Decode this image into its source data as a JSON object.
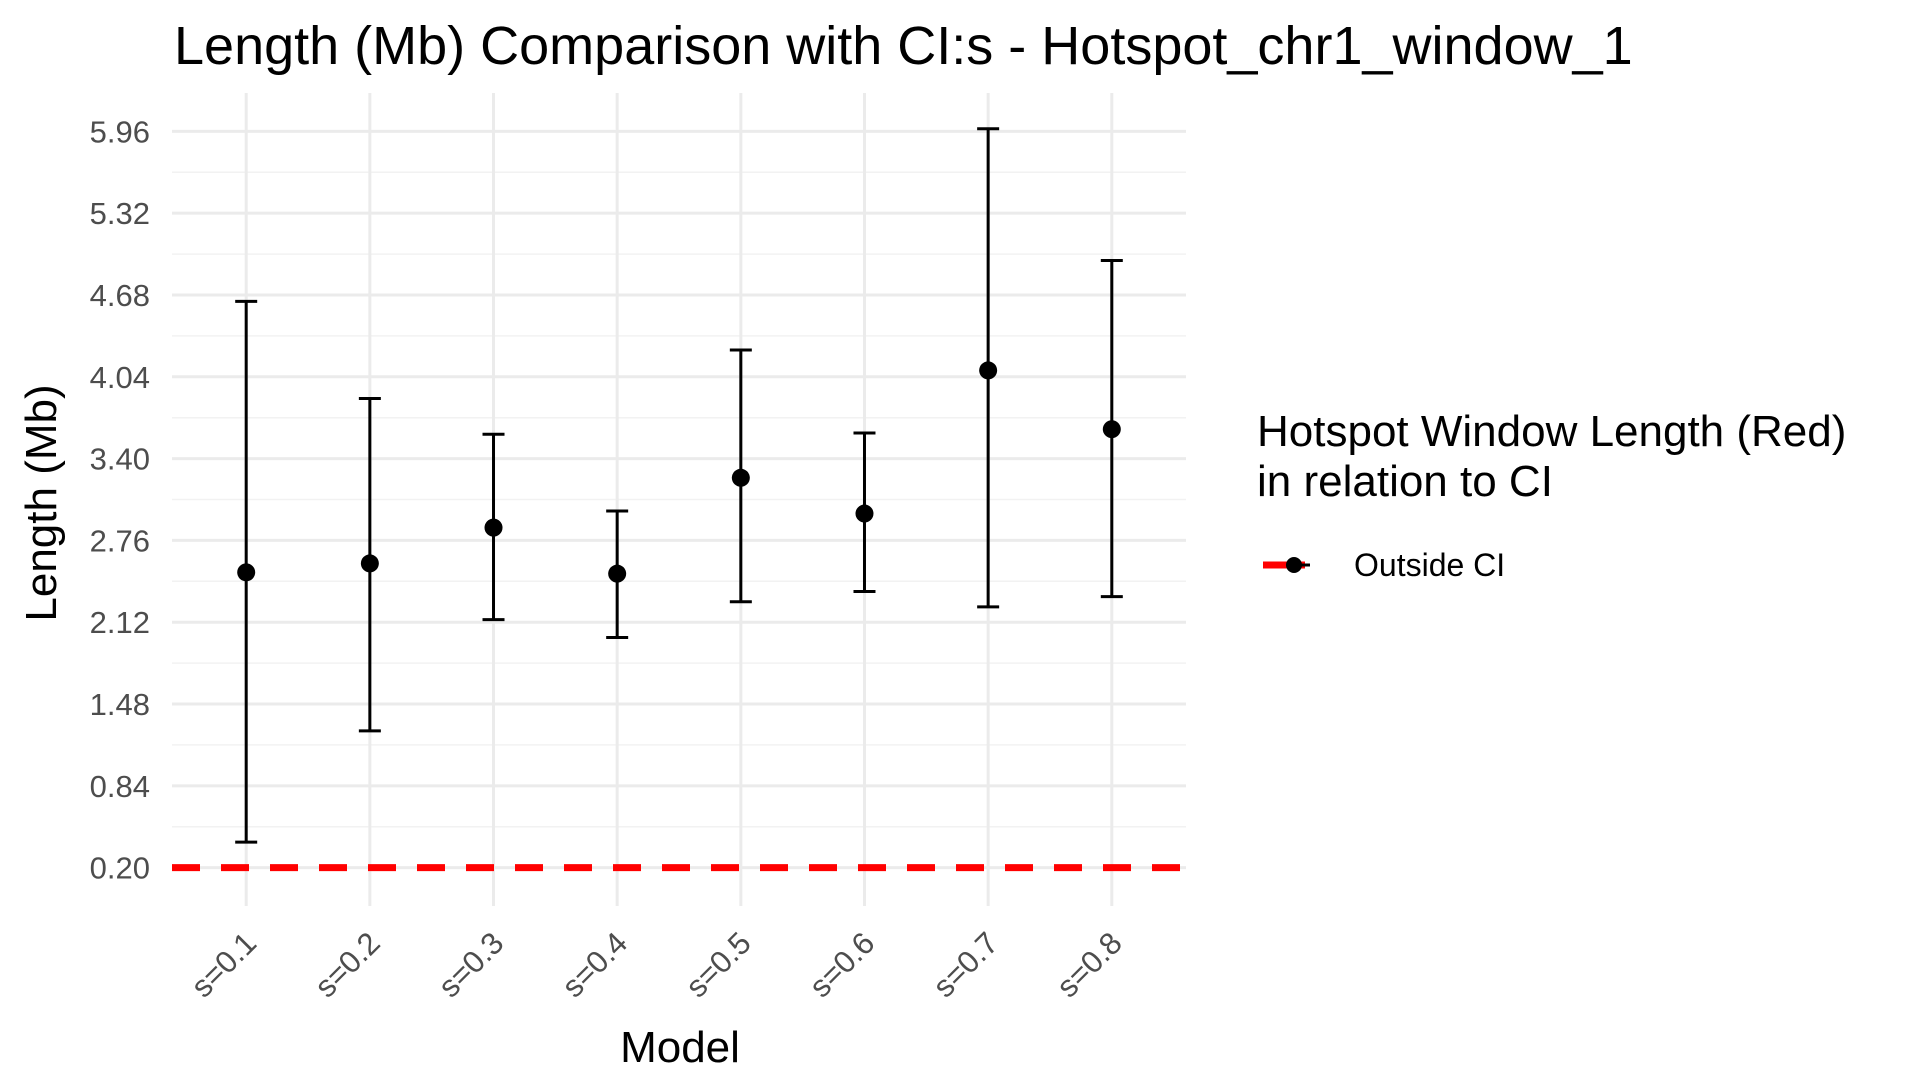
{
  "chart_data": {
    "type": "scatter",
    "title": "Length (Mb) Comparison with CI:s -  Hotspot_chr1_window_1",
    "xlabel": "Model",
    "ylabel": "Length (Mb)",
    "categories": [
      "s=0.1",
      "s=0.2",
      "s=0.3",
      "s=0.4",
      "s=0.5",
      "s=0.6",
      "s=0.7",
      "s=0.8"
    ],
    "ylim": [
      -0.1,
      6.26
    ],
    "yticks": [
      "0.20",
      "0.84",
      "1.48",
      "2.12",
      "2.76",
      "3.40",
      "4.04",
      "4.68",
      "5.32",
      "5.96"
    ],
    "series": [
      {
        "points": [
          {
            "x": "s=0.1",
            "y": 2.51,
            "lower": 0.4,
            "upper": 4.63
          },
          {
            "x": "s=0.2",
            "y": 2.58,
            "lower": 1.27,
            "upper": 3.87
          },
          {
            "x": "s=0.3",
            "y": 2.86,
            "lower": 2.14,
            "upper": 3.59
          },
          {
            "x": "s=0.4",
            "y": 2.5,
            "lower": 2.0,
            "upper": 2.99
          },
          {
            "x": "s=0.5",
            "y": 3.25,
            "lower": 2.28,
            "upper": 4.25
          },
          {
            "x": "s=0.6",
            "y": 2.97,
            "lower": 2.36,
            "upper": 3.6
          },
          {
            "x": "s=0.7",
            "y": 4.09,
            "lower": 2.24,
            "upper": 5.98
          },
          {
            "x": "s=0.8",
            "y": 3.63,
            "lower": 2.32,
            "upper": 4.95
          }
        ]
      }
    ],
    "reference_line": {
      "y": 0.2,
      "color": "#ff0000",
      "style": "dashed"
    },
    "legend": {
      "title_line1": "Hotspot Window Length (Red)",
      "title_line2": "in relation to CI",
      "entries": [
        {
          "label": "Outside CI",
          "line_color": "#ff0000",
          "point_color": "#000000"
        }
      ],
      "position": "right"
    },
    "grid": true
  }
}
